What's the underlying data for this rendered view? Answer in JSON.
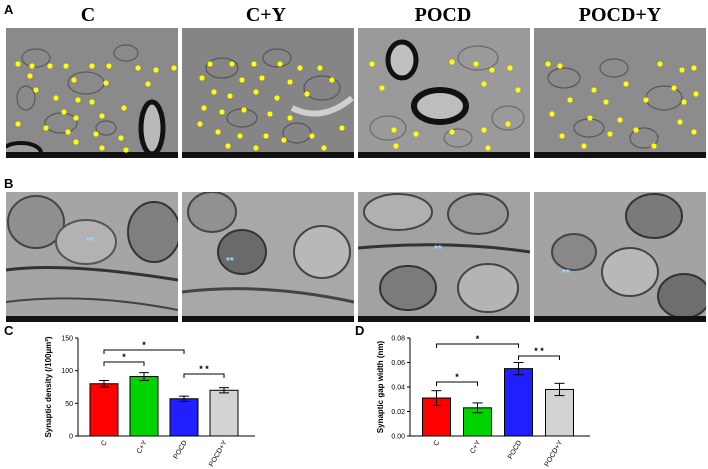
{
  "panel_labels": {
    "a": "A",
    "b": "B",
    "c": "C",
    "d": "D"
  },
  "group_titles": [
    "C",
    "C+Y",
    "POCD",
    "POCD+Y"
  ],
  "colors": {
    "C": "#ff0000",
    "C+Y": "#00d400",
    "POCD": "#1f1fff",
    "POCD+Y": "#d3d3d3",
    "marker": "#ffff00",
    "synapse_marker": "#9fd8ff"
  },
  "row_a_markers": "yellow-dot-markers",
  "row_b_markers": "**",
  "chart_data": [
    {
      "type": "bar",
      "panel": "C",
      "categories": [
        "C",
        "C+Y",
        "POCD",
        "POCD+Y"
      ],
      "values": [
        80,
        91,
        57,
        70
      ],
      "errors": [
        5,
        6,
        4,
        4
      ],
      "ylabel": "Synaptic density (/100µm²)",
      "ylim": [
        0,
        150
      ],
      "yticks": [
        "0",
        "50",
        "100",
        "150"
      ],
      "significance": [
        {
          "from": "C",
          "to": "C+Y",
          "label": "*"
        },
        {
          "from": "C",
          "to": "POCD",
          "label": "*"
        },
        {
          "from": "POCD",
          "to": "POCD+Y",
          "label": "* *"
        }
      ]
    },
    {
      "type": "bar",
      "panel": "D",
      "categories": [
        "C",
        "C+Y",
        "POCD",
        "POCD+Y"
      ],
      "values": [
        0.031,
        0.023,
        0.055,
        0.038
      ],
      "errors": [
        0.006,
        0.004,
        0.005,
        0.005
      ],
      "ylabel": "Synaptic gap width (nm)",
      "ylim": [
        0,
        0.08
      ],
      "yticks": [
        "0.00",
        "0.02",
        "0.04",
        "0.06",
        "0.08"
      ],
      "significance": [
        {
          "from": "C",
          "to": "C+Y",
          "label": "*"
        },
        {
          "from": "C",
          "to": "POCD",
          "label": "*"
        },
        {
          "from": "POCD",
          "to": "POCD+Y",
          "label": "* *"
        }
      ]
    }
  ]
}
